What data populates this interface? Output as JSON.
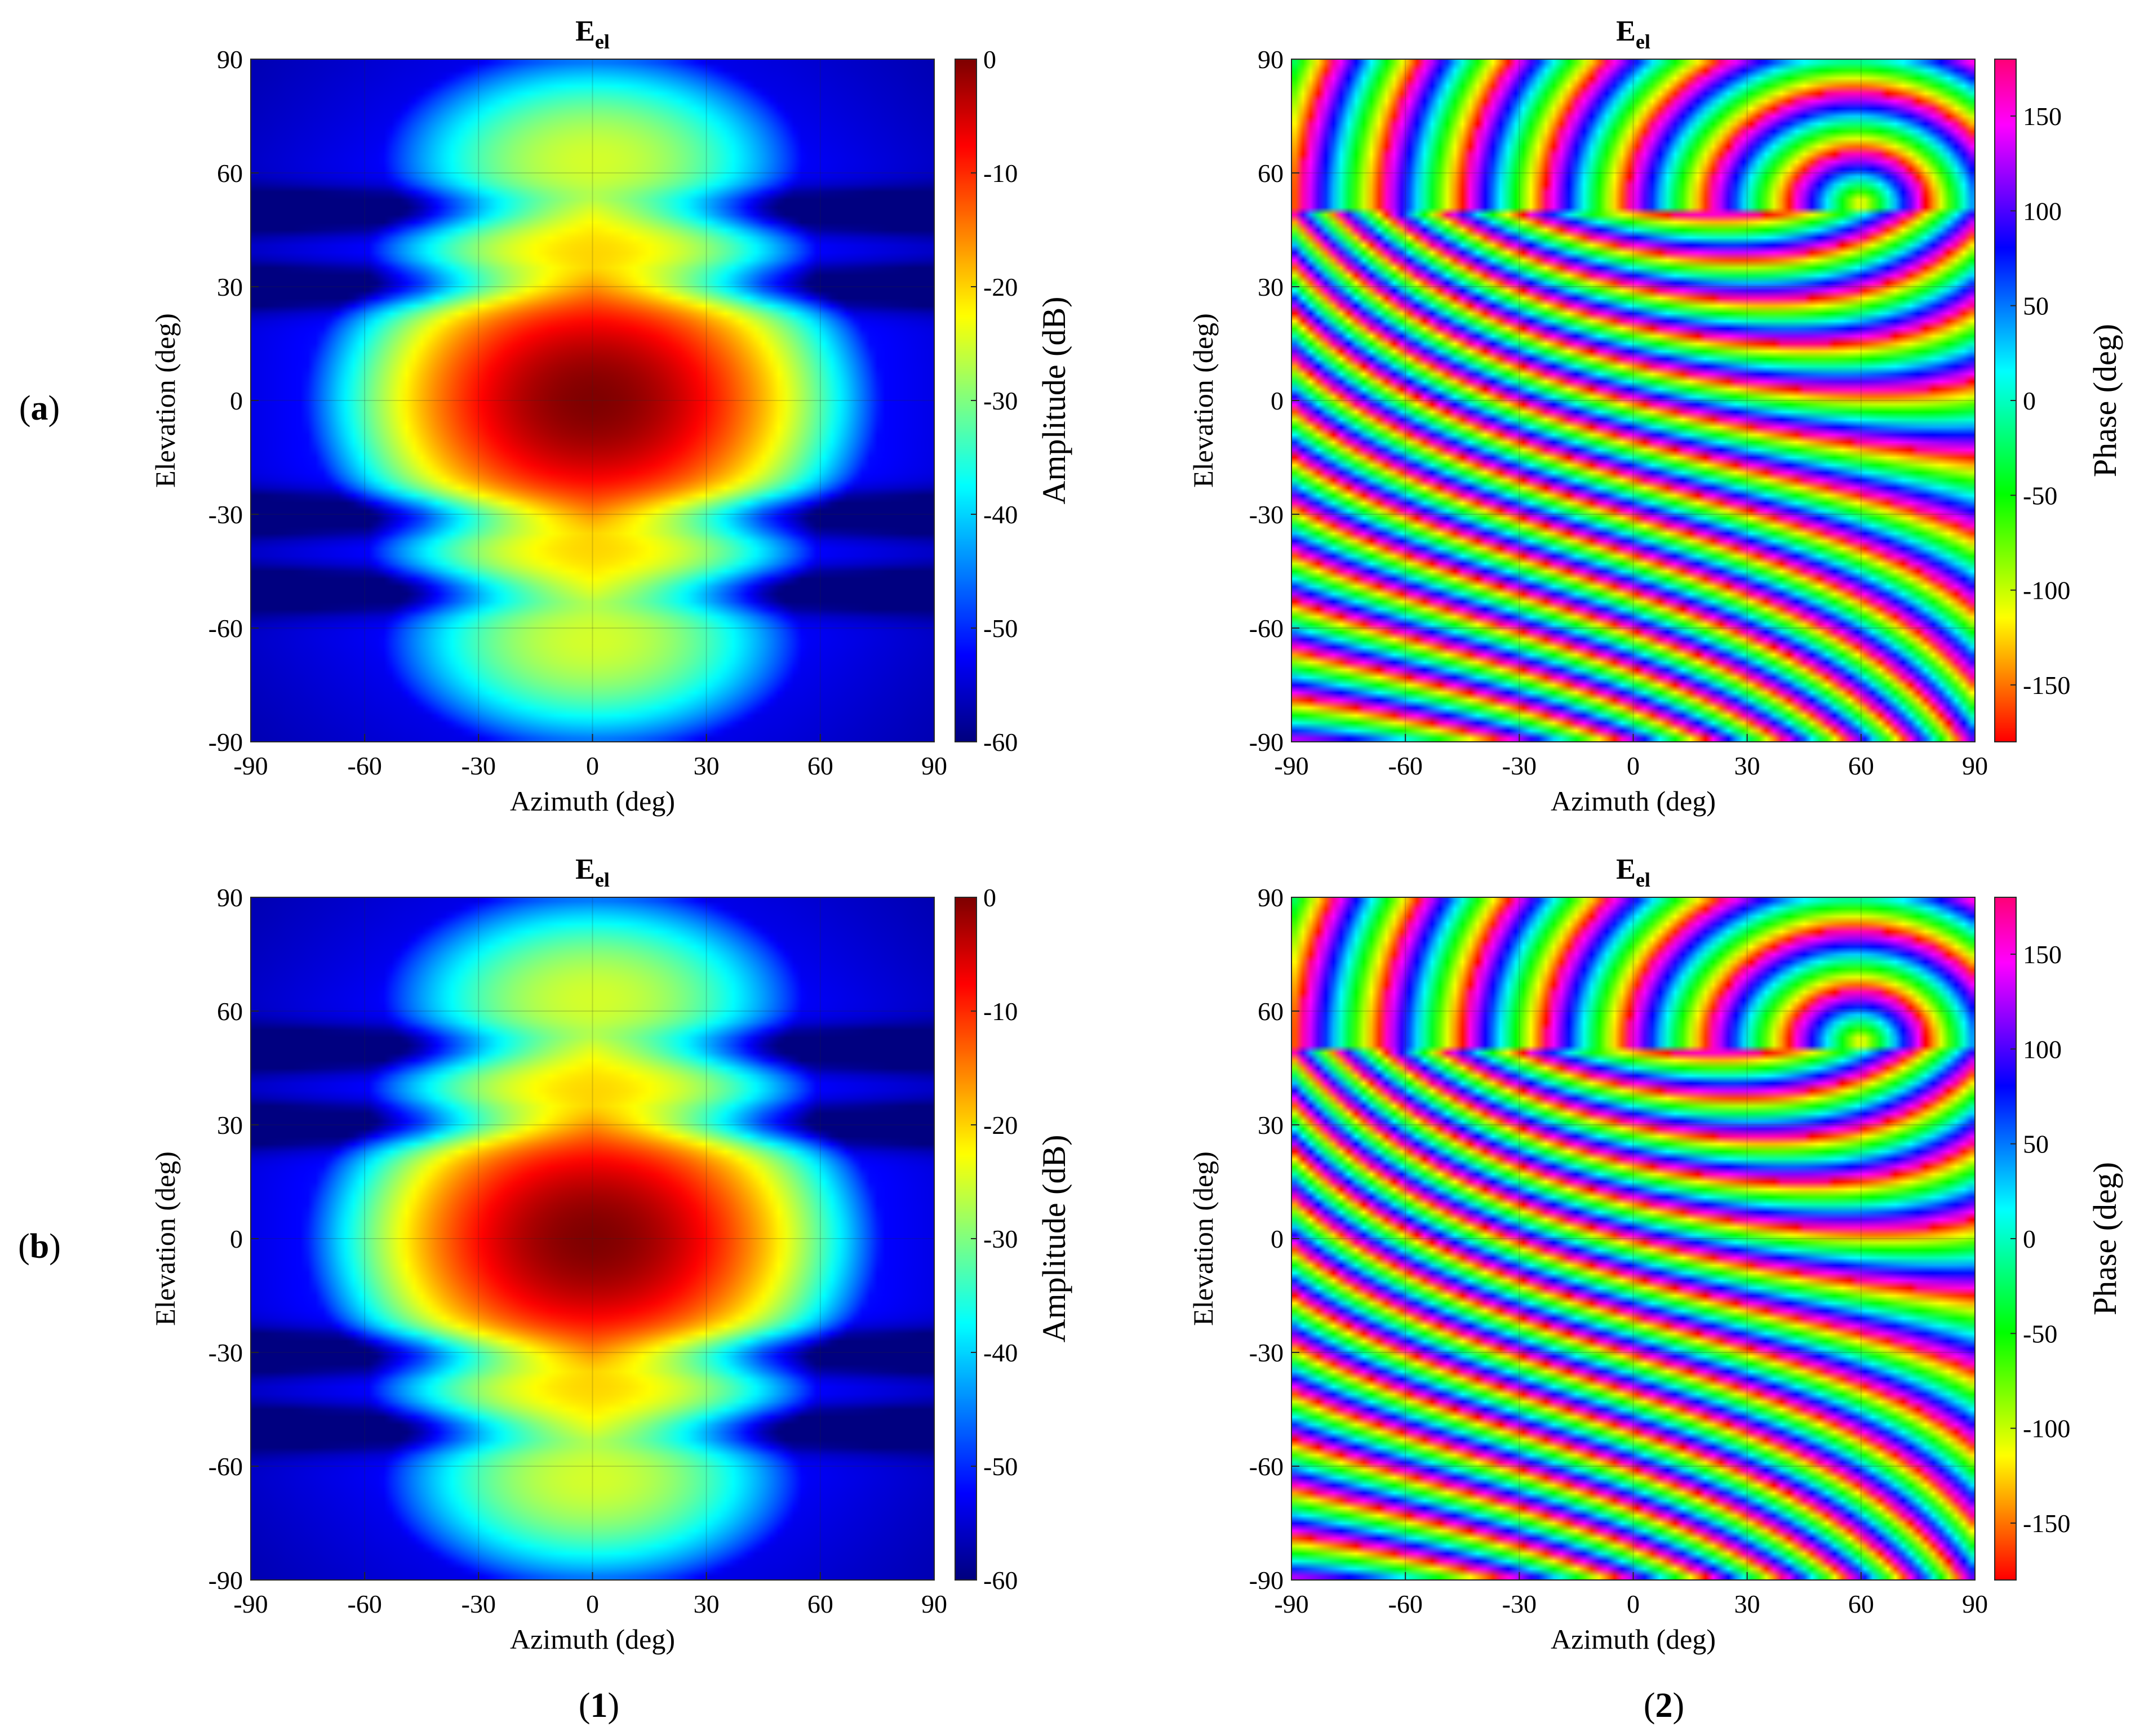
{
  "row_labels": [
    {
      "open": "(",
      "letter": "a",
      "close": ")"
    },
    {
      "open": "(",
      "letter": "b",
      "close": ")"
    }
  ],
  "column_labels": [
    {
      "open": "(",
      "num": "1",
      "close": ")"
    },
    {
      "open": "(",
      "num": "2",
      "close": ")"
    }
  ],
  "chart_data": [
    {
      "id": "a1",
      "type": "heatmap",
      "title": {
        "main": "E",
        "sub": "el"
      },
      "xlabel": "Azimuth (deg)",
      "ylabel": "Elevation (deg)",
      "xlim": [
        -90,
        90
      ],
      "ylim": [
        -90,
        90
      ],
      "xticks": [
        -90,
        -60,
        -30,
        0,
        30,
        60,
        90
      ],
      "yticks": [
        -90,
        -60,
        -30,
        0,
        30,
        60,
        90
      ],
      "grid": true,
      "quantity": "amplitude",
      "colorbar": {
        "label": "Amplitude (dB)",
        "range": [
          -60,
          0
        ],
        "ticks": [
          0,
          -10,
          -20,
          -30,
          -40,
          -50,
          -60
        ],
        "colormap": "jet"
      },
      "features": {
        "peak": {
          "az": 0,
          "el": 0,
          "value": 0
        },
        "lobes_along_el_axis": [
          {
            "el": 0,
            "value": 0
          },
          {
            "el": 22,
            "value": -15
          },
          {
            "el": -22,
            "value": -15
          },
          {
            "el": 38,
            "value": -20
          },
          {
            "el": -38,
            "value": -20
          },
          {
            "el": 63,
            "value": -25
          },
          {
            "el": -63,
            "value": -25
          }
        ],
        "nulls_el": [
          -50,
          -30,
          30,
          50
        ],
        "floor_value": -60
      }
    },
    {
      "id": "a2",
      "type": "heatmap",
      "title": {
        "main": "E",
        "sub": "el"
      },
      "xlabel": "Azimuth (deg)",
      "ylabel": "Elevation (deg)",
      "xlim": [
        -90,
        90
      ],
      "ylim": [
        -90,
        90
      ],
      "xticks": [
        -90,
        -60,
        -30,
        0,
        30,
        60,
        90
      ],
      "yticks": [
        -90,
        -60,
        -30,
        0,
        30,
        60,
        90
      ],
      "grid": true,
      "quantity": "phase",
      "colorbar": {
        "label": "Phase (deg)",
        "range": [
          -180,
          180
        ],
        "ticks": [
          150,
          100,
          50,
          0,
          -50,
          -100,
          -150
        ],
        "colormap": "hsv"
      },
      "features": {
        "wrapped_phase_fringes": true,
        "discontinuity_el": 50,
        "ring_center": {
          "az": 60,
          "el": 52
        }
      }
    },
    {
      "id": "b1",
      "type": "heatmap",
      "title": {
        "main": "E",
        "sub": "el"
      },
      "xlabel": "Azimuth (deg)",
      "ylabel": "Elevation (deg)",
      "xlim": [
        -90,
        90
      ],
      "ylim": [
        -90,
        90
      ],
      "xticks": [
        -90,
        -60,
        -30,
        0,
        30,
        60,
        90
      ],
      "yticks": [
        -90,
        -60,
        -30,
        0,
        30,
        60,
        90
      ],
      "grid": true,
      "quantity": "amplitude",
      "colorbar": {
        "label": "Amplitude (dB)",
        "range": [
          -60,
          0
        ],
        "ticks": [
          0,
          -10,
          -20,
          -30,
          -40,
          -50,
          -60
        ],
        "colormap": "jet"
      },
      "features": {
        "peak": {
          "az": 0,
          "el": 0,
          "value": 0
        },
        "lobes_along_el_axis": [
          {
            "el": 0,
            "value": 0
          },
          {
            "el": 22,
            "value": -15
          },
          {
            "el": -22,
            "value": -15
          },
          {
            "el": 38,
            "value": -20
          },
          {
            "el": -38,
            "value": -20
          },
          {
            "el": 63,
            "value": -25
          },
          {
            "el": -63,
            "value": -25
          }
        ],
        "nulls_el": [
          -50,
          -30,
          30,
          50
        ],
        "floor_value": -60
      }
    },
    {
      "id": "b2",
      "type": "heatmap",
      "title": {
        "main": "E",
        "sub": "el"
      },
      "xlabel": "Azimuth (deg)",
      "ylabel": "Elevation (deg)",
      "xlim": [
        -90,
        90
      ],
      "ylim": [
        -90,
        90
      ],
      "xticks": [
        -90,
        -60,
        -30,
        0,
        30,
        60,
        90
      ],
      "yticks": [
        -90,
        -60,
        -30,
        0,
        30,
        60,
        90
      ],
      "grid": true,
      "quantity": "phase",
      "colorbar": {
        "label": "Phase (deg)",
        "range": [
          -180,
          180
        ],
        "ticks": [
          150,
          100,
          50,
          0,
          -50,
          -100,
          -150
        ],
        "colormap": "hsv"
      },
      "features": {
        "wrapped_phase_fringes": true,
        "discontinuity_el": 50,
        "ring_center": {
          "az": 60,
          "el": 52
        }
      }
    }
  ]
}
